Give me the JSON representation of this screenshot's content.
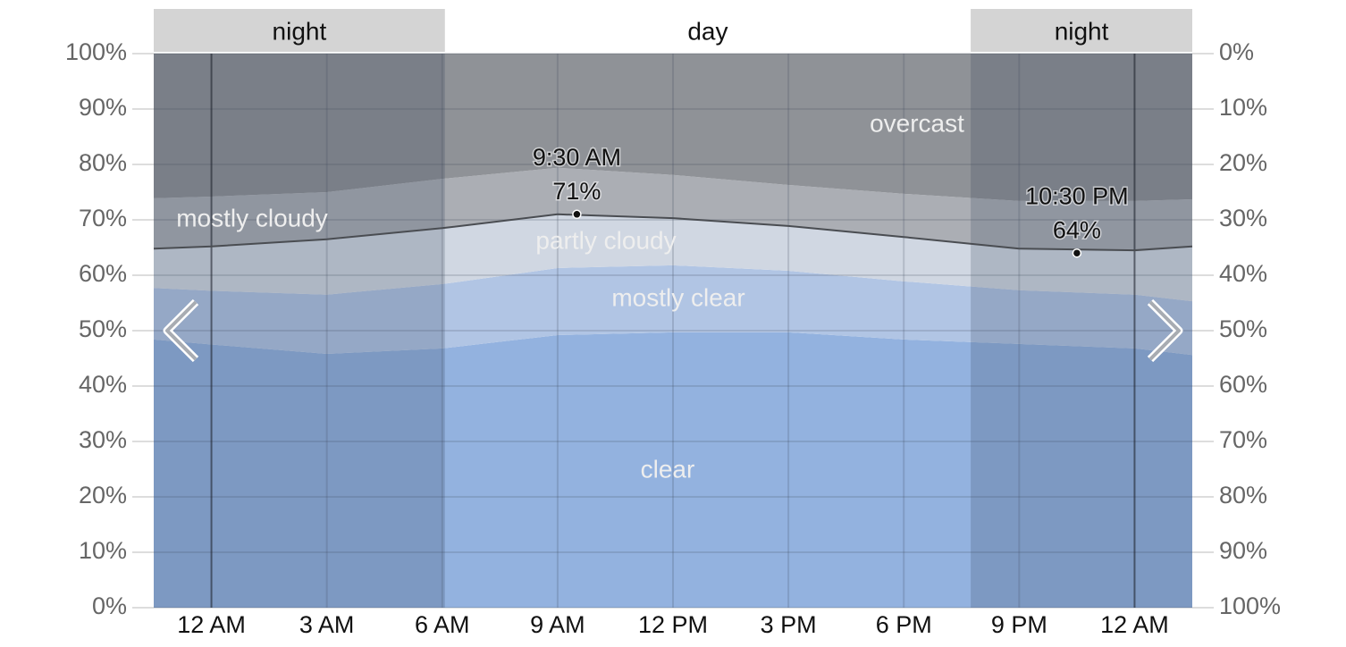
{
  "chart_data": {
    "type": "stacked-area",
    "x": [
      -1.5,
      0,
      3,
      6,
      9,
      12,
      15,
      18,
      21,
      24,
      25.5
    ],
    "xlim": [
      -1.5,
      25.5
    ],
    "xticks": [
      {
        "value": 0,
        "label": "12 AM"
      },
      {
        "value": 3,
        "label": "3 AM"
      },
      {
        "value": 6,
        "label": "6 AM"
      },
      {
        "value": 9,
        "label": "9 AM"
      },
      {
        "value": 12,
        "label": "12 PM"
      },
      {
        "value": 15,
        "label": "3 PM"
      },
      {
        "value": 18,
        "label": "6 PM"
      },
      {
        "value": 21,
        "label": "9 PM"
      },
      {
        "value": 24,
        "label": "12 AM"
      }
    ],
    "ylim": [
      0,
      100
    ],
    "yticks": [
      {
        "value": 0,
        "label": "0%"
      },
      {
        "value": 10,
        "label": "10%"
      },
      {
        "value": 20,
        "label": "20%"
      },
      {
        "value": 30,
        "label": "30%"
      },
      {
        "value": 40,
        "label": "40%"
      },
      {
        "value": 50,
        "label": "50%"
      },
      {
        "value": 60,
        "label": "60%"
      },
      {
        "value": 70,
        "label": "70%"
      },
      {
        "value": 80,
        "label": "80%"
      },
      {
        "value": 90,
        "label": "90%"
      },
      {
        "value": 100,
        "label": "100%"
      }
    ],
    "y2lim": [
      100,
      0
    ],
    "y2ticks": [
      {
        "value": 100,
        "label": "100%"
      },
      {
        "value": 90,
        "label": "90%"
      },
      {
        "value": 80,
        "label": "80%"
      },
      {
        "value": 70,
        "label": "70%"
      },
      {
        "value": 60,
        "label": "60%"
      },
      {
        "value": 50,
        "label": "50%"
      },
      {
        "value": 40,
        "label": "40%"
      },
      {
        "value": 30,
        "label": "30%"
      },
      {
        "value": 20,
        "label": "20%"
      },
      {
        "value": 10,
        "label": "10%"
      },
      {
        "value": 0,
        "label": "0%"
      }
    ],
    "grid": true,
    "series": [
      {
        "name": "clear",
        "color": "#93b2df",
        "values": [
          48.4,
          47.5,
          45.8,
          46.8,
          49.2,
          49.7,
          49.7,
          48.4,
          47.6,
          46.8,
          45.6
        ]
      },
      {
        "name": "mostly clear",
        "color": "#b1c5e4",
        "values": [
          9.3,
          9.7,
          10.7,
          11.6,
          12.1,
          12.1,
          11.1,
          10.5,
          9.7,
          9.7,
          9.7
        ]
      },
      {
        "name": "partly cloudy",
        "color": "#d0d7e2",
        "values": [
          7.1,
          8.0,
          10.0,
          10.1,
          9.7,
          8.5,
          8.1,
          8.0,
          7.5,
          8.0,
          9.9
        ]
      },
      {
        "name": "mostly cloudy",
        "color": "#abaeb4",
        "values": [
          9.1,
          9.0,
          8.5,
          8.9,
          8.4,
          7.8,
          7.4,
          7.8,
          8.6,
          8.9,
          8.5
        ]
      },
      {
        "name": "overcast",
        "color": "#8f9297",
        "values": [
          26.1,
          25.8,
          25.0,
          22.6,
          20.6,
          21.9,
          23.7,
          25.3,
          26.6,
          26.6,
          26.3
        ]
      }
    ],
    "line": {
      "color": "#4a4d52",
      "values": [
        64.8,
        65.2,
        66.5,
        68.5,
        71.0,
        70.3,
        68.9,
        66.9,
        64.8,
        64.5,
        65.2
      ]
    },
    "annotations": [
      {
        "x": 9.5,
        "label": "9:30 AM",
        "value": 71,
        "value_label": "71%"
      },
      {
        "x": 22.5,
        "label": "10:30 PM",
        "value": 64,
        "value_label": "64%"
      }
    ],
    "periods": [
      {
        "label": "night",
        "start": -1.5,
        "end": 6.07
      },
      {
        "label": "day",
        "start": 6.07,
        "end": 19.74
      },
      {
        "label": "night",
        "start": 19.74,
        "end": 25.5
      }
    ]
  }
}
